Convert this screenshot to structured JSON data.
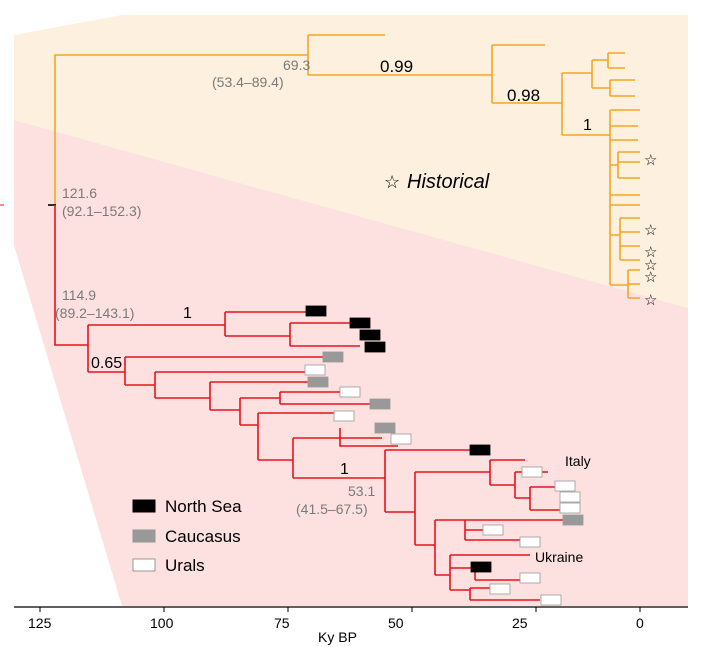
{
  "axis": {
    "title": "Ky BP",
    "ticks": [
      "125",
      "100",
      "75",
      "50",
      "25",
      "0"
    ]
  },
  "clades": {
    "historical_label": "Historical"
  },
  "node_ages": [
    {
      "age": "69.3",
      "ci": "(53.4–89.4)"
    },
    {
      "age": "121.6",
      "ci": "(92.1–152.3)"
    },
    {
      "age": "114.9",
      "ci": "(89.2–143.1)"
    },
    {
      "age": "53.1",
      "ci": "(41.5–67.5)"
    }
  ],
  "supports": [
    "0.99",
    "0.98",
    "1",
    "1",
    "0.65",
    "1"
  ],
  "tips": {
    "italy": "Italy",
    "ukraine": "Ukraine"
  },
  "legend": [
    {
      "label": "North Sea",
      "color": "#000000"
    },
    {
      "label": "Caucasus",
      "color": "#999999"
    },
    {
      "label": "Urals",
      "color": "#ffffff"
    }
  ],
  "colors": {
    "historical_branch": "#f5a623",
    "modern_branch": "#e8141c",
    "historical_bg": "#fdf0df",
    "modern_bg": "#fde0e0"
  }
}
